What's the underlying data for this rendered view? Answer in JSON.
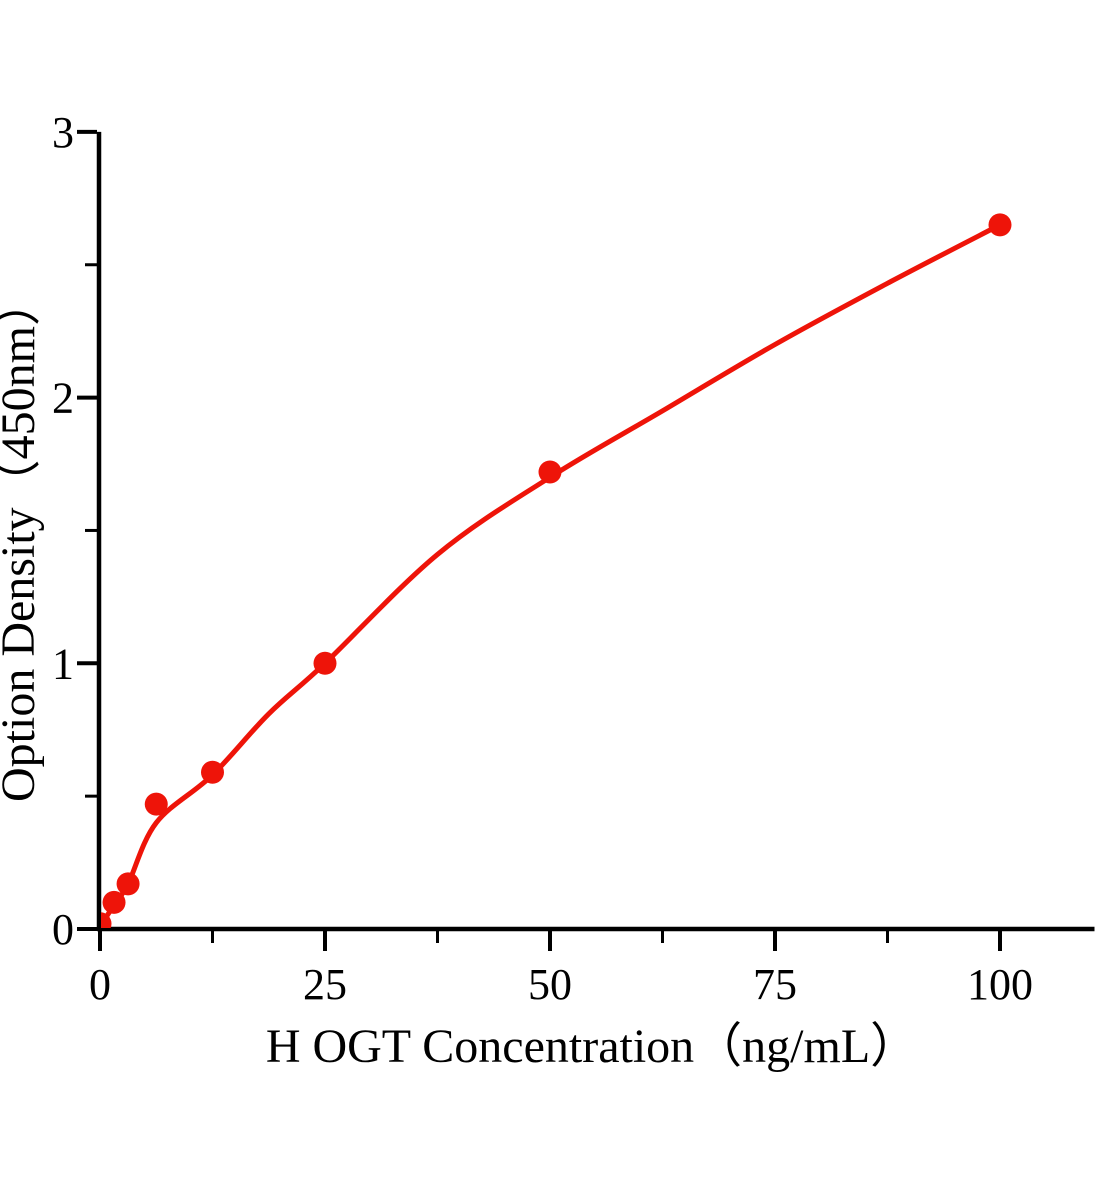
{
  "chart_data": {
    "type": "scatter",
    "title": "",
    "xlabel": "H OGT Concentration（ng/mL）",
    "ylabel": "Option Density（450nm）",
    "xlim": [
      0,
      110.5
    ],
    "ylim": [
      0,
      3
    ],
    "x_major_ticks": [
      0,
      25,
      50,
      75,
      100
    ],
    "x_minor_ticks": [
      12.5,
      37.5,
      62.5,
      87.5
    ],
    "y_major_ticks": [
      0,
      1,
      2,
      3
    ],
    "y_minor_ticks": [
      0.5,
      1.5,
      2.5
    ],
    "grid": false,
    "legend": "none",
    "series": [
      {
        "name": "standard-curve-points",
        "marker": "circle",
        "marker_color": "#ee1409",
        "points": [
          {
            "x": 0,
            "y": 0.02
          },
          {
            "x": 1.56,
            "y": 0.1
          },
          {
            "x": 3.12,
            "y": 0.17
          },
          {
            "x": 6.25,
            "y": 0.47
          },
          {
            "x": 12.5,
            "y": 0.59
          },
          {
            "x": 25,
            "y": 1.0
          },
          {
            "x": 50,
            "y": 1.72
          },
          {
            "x": 100,
            "y": 2.65
          }
        ]
      }
    ],
    "fit_curve": {
      "name": "fitted-standard-curve",
      "color": "#ee1409",
      "samples": [
        [
          0,
          0.01
        ],
        [
          1.56,
          0.09
        ],
        [
          3.12,
          0.17
        ],
        [
          6.25,
          0.4
        ],
        [
          12.5,
          0.58
        ],
        [
          18.75,
          0.81
        ],
        [
          25,
          1.0
        ],
        [
          37.5,
          1.41
        ],
        [
          50,
          1.7
        ],
        [
          62.5,
          1.95
        ],
        [
          75,
          2.2
        ],
        [
          87.5,
          2.43
        ],
        [
          100,
          2.65
        ]
      ]
    },
    "colors": {
      "axis": "#000000",
      "series": "#ee1409",
      "background": "#ffffff"
    }
  }
}
